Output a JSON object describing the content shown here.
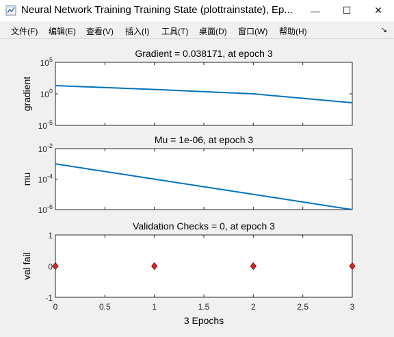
{
  "window": {
    "title": "Neural Network Training Training State (plottrainstate), Ep...",
    "minimize_glyph": "—",
    "maximize_glyph": "☐",
    "close_glyph": "✕"
  },
  "menu": {
    "items": [
      "文件(F)",
      "编辑(E)",
      "查看(V)",
      "插入(I)",
      "工具(T)",
      "桌面(D)",
      "窗口(W)",
      "帮助(H)"
    ],
    "overflow_glyph": "↘"
  },
  "colors": {
    "line": "#0072bd",
    "marker": "#d62728",
    "axes_bg": "#ffffff",
    "figure_bg": "#f0f0f0"
  },
  "chart_data": [
    {
      "type": "line",
      "title": "Gradient = 0.038171, at epoch 3",
      "ylabel": "gradient",
      "yscale": "log",
      "ylim": [
        1e-05,
        100000
      ],
      "yticks": [
        {
          "base": "10",
          "exp": "5"
        },
        {
          "base": "10",
          "exp": "0"
        },
        {
          "base": "10",
          "exp": "-5"
        }
      ],
      "x": [
        0,
        1,
        2,
        3
      ],
      "values": [
        20,
        5,
        1,
        0.038171
      ]
    },
    {
      "type": "line",
      "title": "Mu = 1e-06, at epoch 3",
      "ylabel": "mu",
      "yscale": "log",
      "ylim": [
        1e-06,
        0.01
      ],
      "yticks": [
        {
          "base": "10",
          "exp": "-2"
        },
        {
          "base": "10",
          "exp": "-4"
        },
        {
          "base": "10",
          "exp": "-6"
        }
      ],
      "x": [
        0,
        1,
        2,
        3
      ],
      "values": [
        0.001,
        0.0001,
        1e-05,
        1e-06
      ]
    },
    {
      "type": "scatter",
      "title": "Validation Checks = 0, at epoch 3",
      "ylabel": "val fail",
      "xlabel": "3 Epochs",
      "ylim": [
        -1,
        1
      ],
      "yticks": [
        "1",
        "0",
        "-1"
      ],
      "xlim": [
        0,
        3
      ],
      "xticks": [
        "0",
        "0.5",
        "1",
        "1.5",
        "2",
        "2.5",
        "3"
      ],
      "x": [
        0,
        1,
        2,
        3
      ],
      "values": [
        0,
        0,
        0,
        0
      ]
    }
  ]
}
